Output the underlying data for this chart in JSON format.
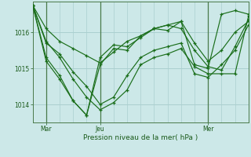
{
  "bg_color": "#cce8e8",
  "line_color": "#1a6e1a",
  "grid_color": "#aacfcf",
  "vline_color": "#4a7a4a",
  "xlabel": "Pression niveau de la mer( hPa )",
  "xlabel_color": "#1a5a1a",
  "tick_color": "#1a5a1a",
  "ylim": [
    1013.5,
    1016.85
  ],
  "yticks": [
    1014,
    1015,
    1016
  ],
  "xlim": [
    0,
    48
  ],
  "xtick_positions": [
    3,
    15,
    39
  ],
  "xtick_labels": [
    "Mar",
    "Jeu",
    "Mer"
  ],
  "vline_positions": [
    3,
    15,
    39
  ],
  "series": [
    {
      "x": [
        0,
        3,
        6,
        9,
        12,
        15,
        18,
        21,
        24,
        27,
        30,
        33,
        36,
        39,
        42,
        45,
        48
      ],
      "y": [
        1016.75,
        1016.1,
        1015.75,
        1015.55,
        1015.35,
        1015.15,
        1015.45,
        1015.75,
        1015.9,
        1016.1,
        1016.2,
        1016.3,
        1015.1,
        1015.0,
        1016.5,
        1016.6,
        1016.5
      ]
    },
    {
      "x": [
        0,
        3,
        6,
        9,
        12,
        15,
        18,
        21,
        24,
        27,
        30,
        33,
        36,
        39,
        42,
        45,
        48
      ],
      "y": [
        1016.75,
        1015.75,
        1015.3,
        1014.7,
        1014.2,
        1013.85,
        1014.05,
        1014.4,
        1015.1,
        1015.3,
        1015.4,
        1015.55,
        1015.05,
        1014.85,
        1014.85,
        1014.85,
        1016.45
      ]
    },
    {
      "x": [
        0,
        3,
        6,
        9,
        12,
        15,
        18,
        21,
        24,
        27,
        30,
        33,
        36,
        39,
        42,
        45,
        48
      ],
      "y": [
        1016.75,
        1015.3,
        1014.8,
        1014.1,
        1013.7,
        1015.1,
        1015.55,
        1015.5,
        1015.9,
        1016.1,
        1016.05,
        1016.3,
        1015.7,
        1015.2,
        1015.5,
        1016.0,
        1016.3
      ]
    },
    {
      "x": [
        0,
        3,
        6,
        9,
        12,
        15,
        18,
        21,
        24,
        27,
        30,
        33,
        36,
        39,
        42,
        45,
        48
      ],
      "y": [
        1016.75,
        1015.7,
        1015.4,
        1014.9,
        1014.5,
        1014.0,
        1014.2,
        1014.8,
        1015.3,
        1015.5,
        1015.6,
        1015.7,
        1014.85,
        1014.75,
        1015.1,
        1015.5,
        1016.2
      ]
    },
    {
      "x": [
        0,
        3,
        6,
        9,
        12,
        15,
        18,
        21,
        24,
        27,
        30,
        33,
        36,
        39,
        42,
        45,
        48
      ],
      "y": [
        1016.75,
        1015.2,
        1014.7,
        1014.1,
        1013.7,
        1015.3,
        1015.65,
        1015.6,
        1015.85,
        1016.1,
        1016.2,
        1016.1,
        1015.5,
        1015.05,
        1014.95,
        1015.6,
        1016.35
      ]
    }
  ]
}
